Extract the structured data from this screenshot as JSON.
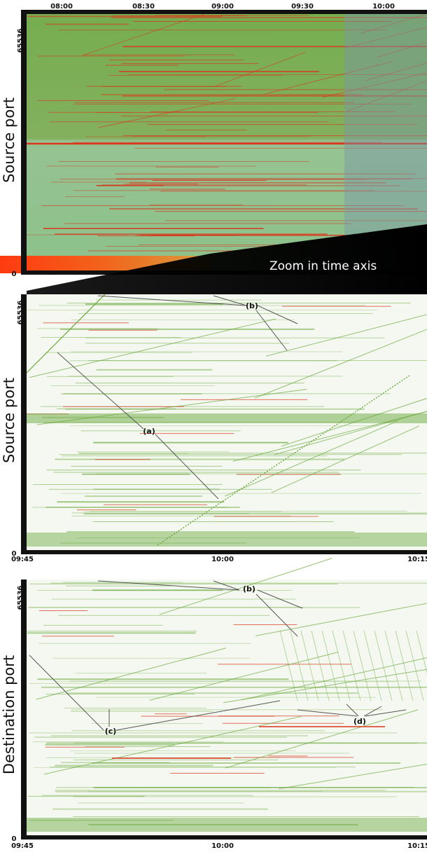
{
  "chart_data": [
    {
      "type": "heatmap",
      "panel": "overview",
      "ylabel": "Source port",
      "x_ticks": [
        "08:00",
        "08:30",
        "09:00",
        "09:30",
        "10:00"
      ],
      "x_tick_position": "top",
      "y_ticks": [
        "0",
        "65536"
      ],
      "ylim": [
        0,
        65536
      ],
      "zoom_label": "Zoom in time axis",
      "colors": {
        "background": "#79b45b",
        "traffic": "#d9361c",
        "zoom_region": "#7fa0a0"
      }
    },
    {
      "type": "heatmap",
      "panel": "zoom-source",
      "ylabel": "Source port",
      "x_ticks": [
        "09:45",
        "10:00",
        "10:15"
      ],
      "y_ticks": [
        "0",
        "65536"
      ],
      "ylim": [
        0,
        65536
      ],
      "annotations": [
        "(b)",
        "(a)"
      ],
      "colors": {
        "background": "#f3f8ef",
        "scan": "#6aa83c",
        "traffic": "#d9361c"
      }
    },
    {
      "type": "heatmap",
      "panel": "zoom-destination",
      "ylabel": "Destination port",
      "x_ticks": [
        "09:45",
        "10:00",
        "10:15"
      ],
      "y_ticks": [
        "0",
        "65536"
      ],
      "ylim": [
        0,
        65536
      ],
      "annotations": [
        "(b)",
        "(c)",
        "(d)"
      ],
      "colors": {
        "background": "#f3f8ef",
        "scan": "#6aa83c",
        "traffic": "#d9361c"
      }
    }
  ]
}
